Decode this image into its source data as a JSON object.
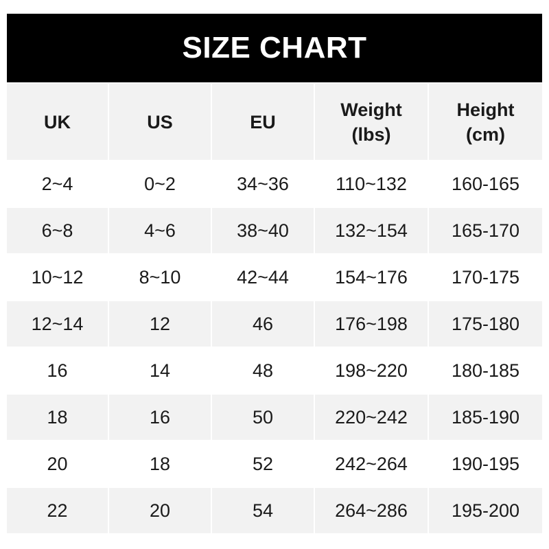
{
  "title": "SIZE CHART",
  "headers": [
    [
      "UK"
    ],
    [
      "US"
    ],
    [
      "EU"
    ],
    [
      "Weight",
      "(lbs)"
    ],
    [
      "Height",
      "(cm)"
    ]
  ],
  "rows": [
    [
      "2~4",
      "0~2",
      "34~36",
      "110~132",
      "160-165"
    ],
    [
      "6~8",
      "4~6",
      "38~40",
      "132~154",
      "165-170"
    ],
    [
      "10~12",
      "8~10",
      "42~44",
      "154~176",
      "170-175"
    ],
    [
      "12~14",
      "12",
      "46",
      "176~198",
      "175-180"
    ],
    [
      "16",
      "14",
      "48",
      "198~220",
      "180-185"
    ],
    [
      "18",
      "16",
      "50",
      "220~242",
      "185-190"
    ],
    [
      "20",
      "18",
      "52",
      "242~264",
      "190-195"
    ],
    [
      "22",
      "20",
      "54",
      "264~286",
      "195-200"
    ]
  ],
  "colors": {
    "title_bg": "#000000",
    "alt_row_bg": "#f2f2f2"
  }
}
